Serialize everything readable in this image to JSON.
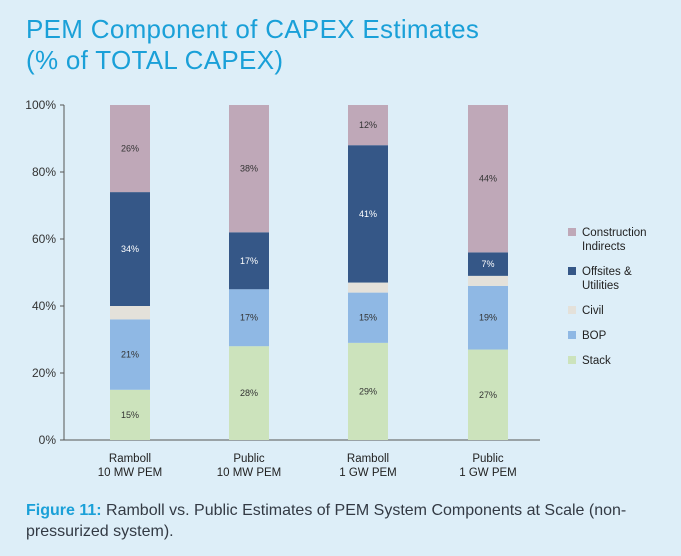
{
  "title": {
    "line1": "PEM Component of CAPEX Estimates",
    "line2": "(% of TOTAL CAPEX)"
  },
  "caption": {
    "figure": "Figure 11:",
    "text": " Ramboll vs. Public Estimates of PEM System Components at Scale (non-pressurized system)."
  },
  "chart_data": {
    "type": "bar",
    "stacked": true,
    "categories": [
      [
        "Ramboll",
        "10 MW PEM"
      ],
      [
        "Public",
        "10 MW PEM"
      ],
      [
        "Ramboll",
        "1 GW PEM"
      ],
      [
        "Public",
        "1 GW PEM"
      ]
    ],
    "ylim": [
      0,
      100
    ],
    "yticks": [
      0,
      20,
      40,
      60,
      80,
      100
    ],
    "ytick_labels": [
      "0%",
      "20%",
      "40%",
      "60%",
      "80%",
      "100%"
    ],
    "legend_position": "right",
    "series": [
      {
        "name": "Stack",
        "color": "#cce3bc",
        "values": [
          15,
          28,
          29,
          27
        ],
        "labels": [
          "15%",
          "28%",
          "29%",
          "27%"
        ],
        "label_color": "#333333"
      },
      {
        "name": "BOP",
        "color": "#8fb8e4",
        "values": [
          21,
          17,
          15,
          19
        ],
        "labels": [
          "21%",
          "17%",
          "15%",
          "19%"
        ],
        "label_color": "#333333"
      },
      {
        "name": "Civil",
        "color": "#e4e1da",
        "values": [
          4,
          0,
          3,
          3
        ],
        "labels": [
          "",
          "",
          "",
          ""
        ],
        "label_color": "#333333"
      },
      {
        "name": "Offsites &\nUtilities",
        "color": "#355787",
        "values": [
          34,
          17,
          41,
          7
        ],
        "labels": [
          "34%",
          "17%",
          "41%",
          "7%"
        ],
        "label_color": "#ffffff"
      },
      {
        "name": "Construction\nIndirects",
        "color": "#bfa8b8",
        "values": [
          26,
          38,
          12,
          44
        ],
        "labels": [
          "26%",
          "38%",
          "12%",
          "44%"
        ],
        "label_color": "#333333"
      }
    ]
  }
}
